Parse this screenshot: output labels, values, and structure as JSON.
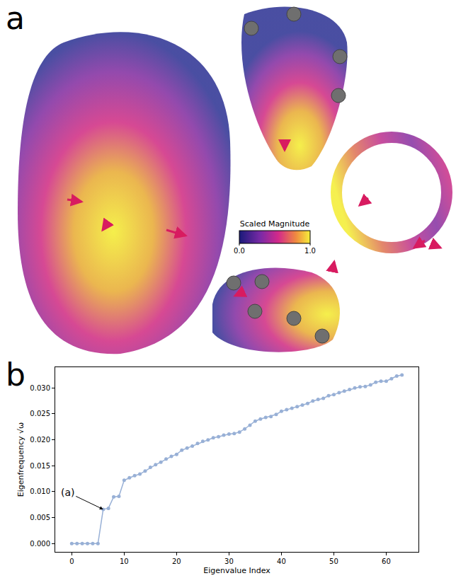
{
  "chart_data": {
    "type": "line",
    "panel_label": "b",
    "xlabel": "Eigenvalue Index",
    "ylabel": "Eigenfrequency √ω",
    "x": [
      0,
      1,
      2,
      3,
      4,
      5,
      6,
      7,
      8,
      9,
      10,
      11,
      12,
      13,
      14,
      15,
      16,
      17,
      18,
      19,
      20,
      21,
      22,
      23,
      24,
      25,
      26,
      27,
      28,
      29,
      30,
      31,
      32,
      33,
      34,
      35,
      36,
      37,
      38,
      39,
      40,
      41,
      42,
      43,
      44,
      45,
      46,
      47,
      48,
      49,
      50,
      51,
      52,
      53,
      54,
      55,
      56,
      57,
      58,
      59,
      60,
      61,
      62,
      63
    ],
    "values": [
      0,
      0,
      0,
      0,
      0,
      0,
      0.0066,
      0.0068,
      0.009,
      0.0091,
      0.0122,
      0.0127,
      0.0131,
      0.0134,
      0.014,
      0.0147,
      0.0152,
      0.0157,
      0.0163,
      0.0168,
      0.0172,
      0.018,
      0.0184,
      0.0188,
      0.0193,
      0.0197,
      0.02,
      0.0204,
      0.0206,
      0.0209,
      0.0211,
      0.0212,
      0.0215,
      0.0221,
      0.0228,
      0.0236,
      0.024,
      0.0243,
      0.0245,
      0.0249,
      0.0255,
      0.0258,
      0.0261,
      0.0264,
      0.0267,
      0.027,
      0.0275,
      0.0278,
      0.028,
      0.0285,
      0.0287,
      0.0291,
      0.0294,
      0.0297,
      0.03,
      0.0302,
      0.0303,
      0.0306,
      0.0311,
      0.0313,
      0.0313,
      0.0318,
      0.0323,
      0.0325
    ],
    "xlim": [
      -3.15,
      66.15
    ],
    "ylim": [
      -0.0016,
      0.034
    ],
    "xticks": [
      0,
      10,
      20,
      30,
      40,
      50,
      60
    ],
    "yticks": [
      {
        "value": 0,
        "label": "0.000"
      },
      {
        "value": 0.005,
        "label": "0.005"
      },
      {
        "value": 0.01,
        "label": "0.010"
      },
      {
        "value": 0.015,
        "label": "0.015"
      },
      {
        "value": 0.02,
        "label": "0.020"
      },
      {
        "value": 0.025,
        "label": "0.025"
      },
      {
        "value": 0.03,
        "label": "0.030"
      }
    ],
    "color": "#98b0d6",
    "marker": "circle",
    "line_style": "solid",
    "grid": false,
    "annotations": [
      {
        "text": "(a)",
        "x": 6,
        "y": 0.0066
      }
    ]
  },
  "image_panel": {
    "label": "a",
    "colorbar": {
      "title": "Scaled Magnitude",
      "range": [
        0,
        1
      ],
      "ticks": [
        {
          "value": 0,
          "label": "0.0"
        },
        {
          "value": 1,
          "label": "1.0"
        }
      ]
    }
  }
}
